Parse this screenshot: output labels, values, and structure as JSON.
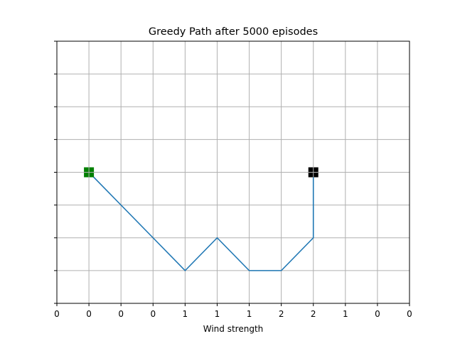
{
  "chart_data": {
    "type": "line",
    "title": "Greedy Path after 5000 episodes",
    "xlabel": "Wind strength",
    "ylabel": "",
    "xlim": [
      -0.5,
      10.5
    ],
    "ylim": [
      -0.5,
      7.5
    ],
    "grid": true,
    "x_tick_values": [
      -0.5,
      0.5,
      1.5,
      2.5,
      3.5,
      4.5,
      5.5,
      6.5,
      7.5,
      8.5,
      9.5,
      10.5
    ],
    "x_tick_labels": [
      "0",
      "0",
      "0",
      "0",
      "1",
      "1",
      "1",
      "2",
      "2",
      "1",
      "0",
      "0"
    ],
    "y_tick_values": [
      -0.5,
      0.5,
      1.5,
      2.5,
      3.5,
      4.5,
      5.5,
      6.5,
      7.5
    ],
    "y_tick_labels": [
      "",
      "",
      "",
      "",
      "",
      "",
      "",
      "",
      ""
    ],
    "series": [
      {
        "color": "#1f77b4",
        "x": [
          0.5,
          1.5,
          2.5,
          3.5,
          4.5,
          5.5,
          6.5,
          7.5,
          7.5
        ],
        "y": [
          3.5,
          2.5,
          1.5,
          0.5,
          1.5,
          0.5,
          0.5,
          1.5,
          3.5
        ]
      }
    ],
    "markers": [
      {
        "name": "start",
        "x": 0.5,
        "y": 3.5,
        "color": "#008000"
      },
      {
        "name": "goal",
        "x": 7.5,
        "y": 3.5,
        "color": "#000000"
      }
    ]
  }
}
